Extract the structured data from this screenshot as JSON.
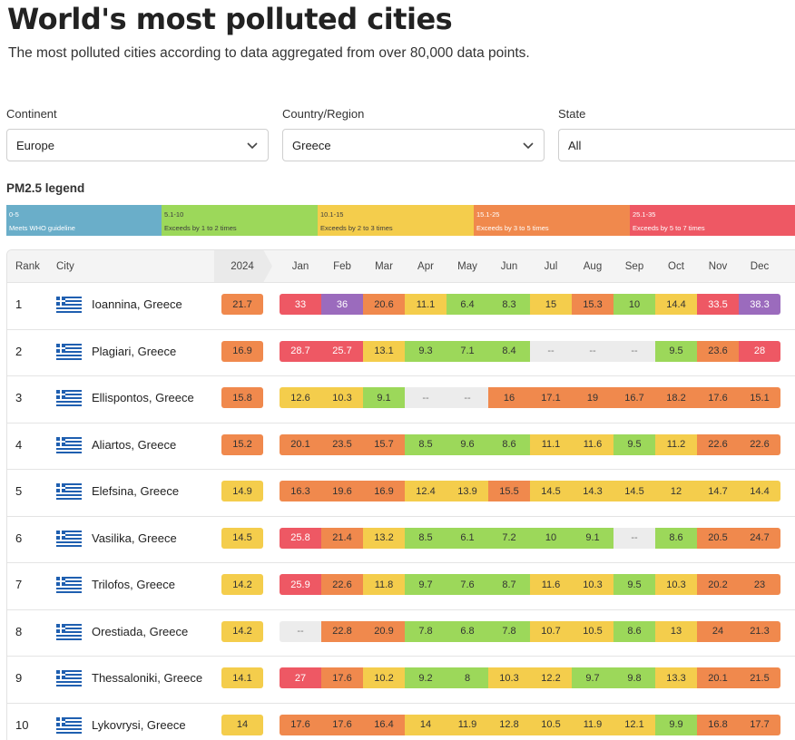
{
  "header": {
    "title": "World's most polluted cities",
    "subtitle": "The most polluted cities according to data aggregated from over 80,000 data points."
  },
  "filters": [
    {
      "label": "Continent",
      "value": "Europe"
    },
    {
      "label": "Country/Region",
      "value": "Greece"
    },
    {
      "label": "State",
      "value": "All"
    }
  ],
  "legend": {
    "title": "PM2.5 legend",
    "items": [
      {
        "range": "0-5",
        "desc": "Meets WHO guideline",
        "color": "#6aaec9"
      },
      {
        "range": "5.1-10",
        "desc": "Exceeds by 1 to 2 times",
        "color": "#9cd85a"
      },
      {
        "range": "10.1-15",
        "desc": "Exceeds by 2 to 3 times",
        "color": "#f4cd4c"
      },
      {
        "range": "15.1-25",
        "desc": "Exceeds by 3 to 5 times",
        "color": "#f0894d"
      },
      {
        "range": "25.1-35",
        "desc": "Exceeds by 5 to 7 times",
        "color": "#ee5864"
      }
    ]
  },
  "table": {
    "columns": {
      "rank": "Rank",
      "city": "City",
      "year": "2024",
      "months": [
        "Jan",
        "Feb",
        "Mar",
        "Apr",
        "May",
        "Jun",
        "Jul",
        "Aug",
        "Sep",
        "Oct",
        "Nov",
        "Dec"
      ]
    },
    "rows": [
      {
        "rank": "1",
        "city": "Ioannina, Greece",
        "year": "21.7",
        "months": [
          "33",
          "36",
          "20.6",
          "11.1",
          "6.4",
          "8.3",
          "15",
          "15.3",
          "10",
          "14.4",
          "33.5",
          "38.3"
        ]
      },
      {
        "rank": "2",
        "city": "Plagiari, Greece",
        "year": "16.9",
        "months": [
          "28.7",
          "25.7",
          "13.1",
          "9.3",
          "7.1",
          "8.4",
          "--",
          "--",
          "--",
          "9.5",
          "23.6",
          "28"
        ]
      },
      {
        "rank": "3",
        "city": "Ellispontos, Greece",
        "year": "15.8",
        "months": [
          "12.6",
          "10.3",
          "9.1",
          "--",
          "--",
          "16",
          "17.1",
          "19",
          "16.7",
          "18.2",
          "17.6",
          "15.1"
        ]
      },
      {
        "rank": "4",
        "city": "Aliartos, Greece",
        "year": "15.2",
        "months": [
          "20.1",
          "23.5",
          "15.7",
          "8.5",
          "9.6",
          "8.6",
          "11.1",
          "11.6",
          "9.5",
          "11.2",
          "22.6",
          "22.6"
        ]
      },
      {
        "rank": "5",
        "city": "Elefsina, Greece",
        "year": "14.9",
        "months": [
          "16.3",
          "19.6",
          "16.9",
          "12.4",
          "13.9",
          "15.5",
          "14.5",
          "14.3",
          "14.5",
          "12",
          "14.7",
          "14.4"
        ]
      },
      {
        "rank": "6",
        "city": "Vasilika, Greece",
        "year": "14.5",
        "months": [
          "25.8",
          "21.4",
          "13.2",
          "8.5",
          "6.1",
          "7.2",
          "10",
          "9.1",
          "--",
          "8.6",
          "20.5",
          "24.7"
        ]
      },
      {
        "rank": "7",
        "city": "Trilofos, Greece",
        "year": "14.2",
        "months": [
          "25.9",
          "22.6",
          "11.8",
          "9.7",
          "7.6",
          "8.7",
          "11.6",
          "10.3",
          "9.5",
          "10.3",
          "20.2",
          "23"
        ]
      },
      {
        "rank": "8",
        "city": "Orestiada, Greece",
        "year": "14.2",
        "months": [
          "--",
          "22.8",
          "20.9",
          "7.8",
          "6.8",
          "7.8",
          "10.7",
          "10.5",
          "8.6",
          "13",
          "24",
          "21.3"
        ]
      },
      {
        "rank": "9",
        "city": "Thessaloniki, Greece",
        "year": "14.1",
        "months": [
          "27",
          "17.6",
          "10.2",
          "9.2",
          "8",
          "10.3",
          "12.2",
          "9.7",
          "9.8",
          "13.3",
          "20.1",
          "21.5"
        ]
      },
      {
        "rank": "10",
        "city": "Lykovrysi, Greece",
        "year": "14",
        "months": [
          "17.6",
          "17.6",
          "16.4",
          "14",
          "11.9",
          "12.8",
          "10.5",
          "11.9",
          "12.1",
          "9.9",
          "16.8",
          "17.7"
        ]
      }
    ]
  }
}
